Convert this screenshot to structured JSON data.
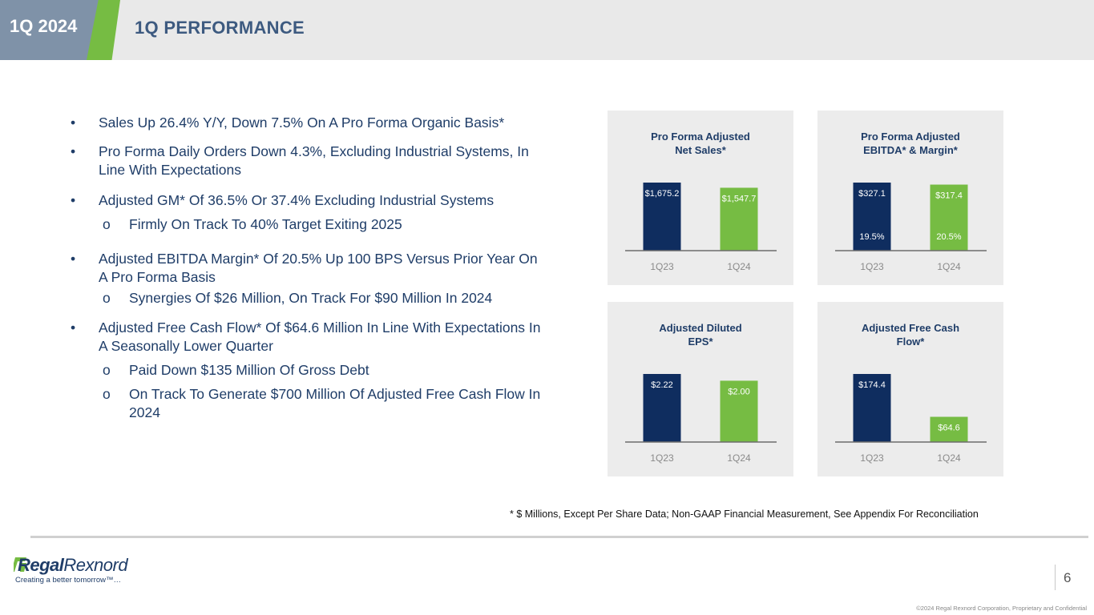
{
  "header": {
    "period": "1Q 2024",
    "title": "1Q PERFORMANCE"
  },
  "bullets": [
    {
      "level": 1,
      "marker": "•",
      "text": "Sales Up 26.4% Y/Y, Down 7.5% On A Pro Forma Organic Basis*"
    },
    {
      "level": 1,
      "marker": "•",
      "text": "Pro Forma Daily Orders Down 4.3%, Excluding Industrial Systems, In Line With Expectations"
    },
    {
      "level": 1,
      "marker": "•",
      "text": "Adjusted GM* Of 36.5% Or 37.4% Excluding Industrial Systems"
    },
    {
      "level": 2,
      "marker": "o",
      "text": "Firmly On Track To 40% Target Exiting 2025"
    },
    {
      "level": 1,
      "marker": "•",
      "text": "Adjusted EBITDA Margin* Of 20.5% Up 100 BPS Versus Prior Year On A Pro Forma Basis"
    },
    {
      "level": 2,
      "marker": "o",
      "text": "Synergies Of $26 Million, On Track For $90 Million In 2024"
    },
    {
      "level": 1,
      "marker": "•",
      "text": "Adjusted Free Cash Flow* Of $64.6 Million In Line With Expectations In A Seasonally Lower Quarter"
    },
    {
      "level": 2,
      "marker": "o",
      "text": "Paid Down $135 Million Of Gross Debt"
    },
    {
      "level": 2,
      "marker": "o",
      "text": "On Track To Generate $700 Million Of Adjusted Free Cash Flow In 2024"
    }
  ],
  "colors": {
    "prior": "#0f2d5f",
    "current": "#76bc43",
    "panel": "#ececec",
    "axis": "#6d6d6d",
    "tick": "#8a8a8a",
    "brand": "#1f3d68"
  },
  "chart_data": [
    {
      "type": "bar",
      "title": [
        "Pro Forma Adjusted",
        "Net Sales*"
      ],
      "categories": [
        "1Q23",
        "1Q24"
      ],
      "values": [
        1675.2,
        1547.7
      ],
      "value_labels": [
        "$1,675.2",
        "$1,547.7"
      ],
      "unit": "$ Millions"
    },
    {
      "type": "bar",
      "title": [
        "Pro Forma Adjusted",
        "EBITDA* & Margin*"
      ],
      "categories": [
        "1Q23",
        "1Q24"
      ],
      "values": [
        327.1,
        317.4
      ],
      "value_labels": [
        "$327.1",
        "$317.4"
      ],
      "margins": [
        "19.5%",
        "20.5%"
      ],
      "unit": "$ Millions"
    },
    {
      "type": "bar",
      "title": [
        "Adjusted Diluted",
        "EPS*"
      ],
      "categories": [
        "1Q23",
        "1Q24"
      ],
      "values": [
        2.22,
        2.0
      ],
      "value_labels": [
        "$2.22",
        "$2.00"
      ],
      "unit": "$ Per Share"
    },
    {
      "type": "bar",
      "title": [
        "Adjusted Free Cash",
        "Flow*"
      ],
      "categories": [
        "1Q23",
        "1Q24"
      ],
      "values": [
        174.4,
        64.6
      ],
      "value_labels": [
        "$174.4",
        "$64.6"
      ],
      "unit": "$ Millions"
    }
  ],
  "footnote": "* $ Millions, Except Per Share Data; Non-GAAP Financial Measurement, See Appendix For Reconciliation",
  "footer": {
    "logo_word_1": "Regal",
    "logo_word_2": "Rexnord",
    "tagline": "Creating a better tomorrow™…",
    "page_number": "6",
    "copyright": "©2024 Regal Rexnord Corporation, Proprietary and Confidential"
  }
}
